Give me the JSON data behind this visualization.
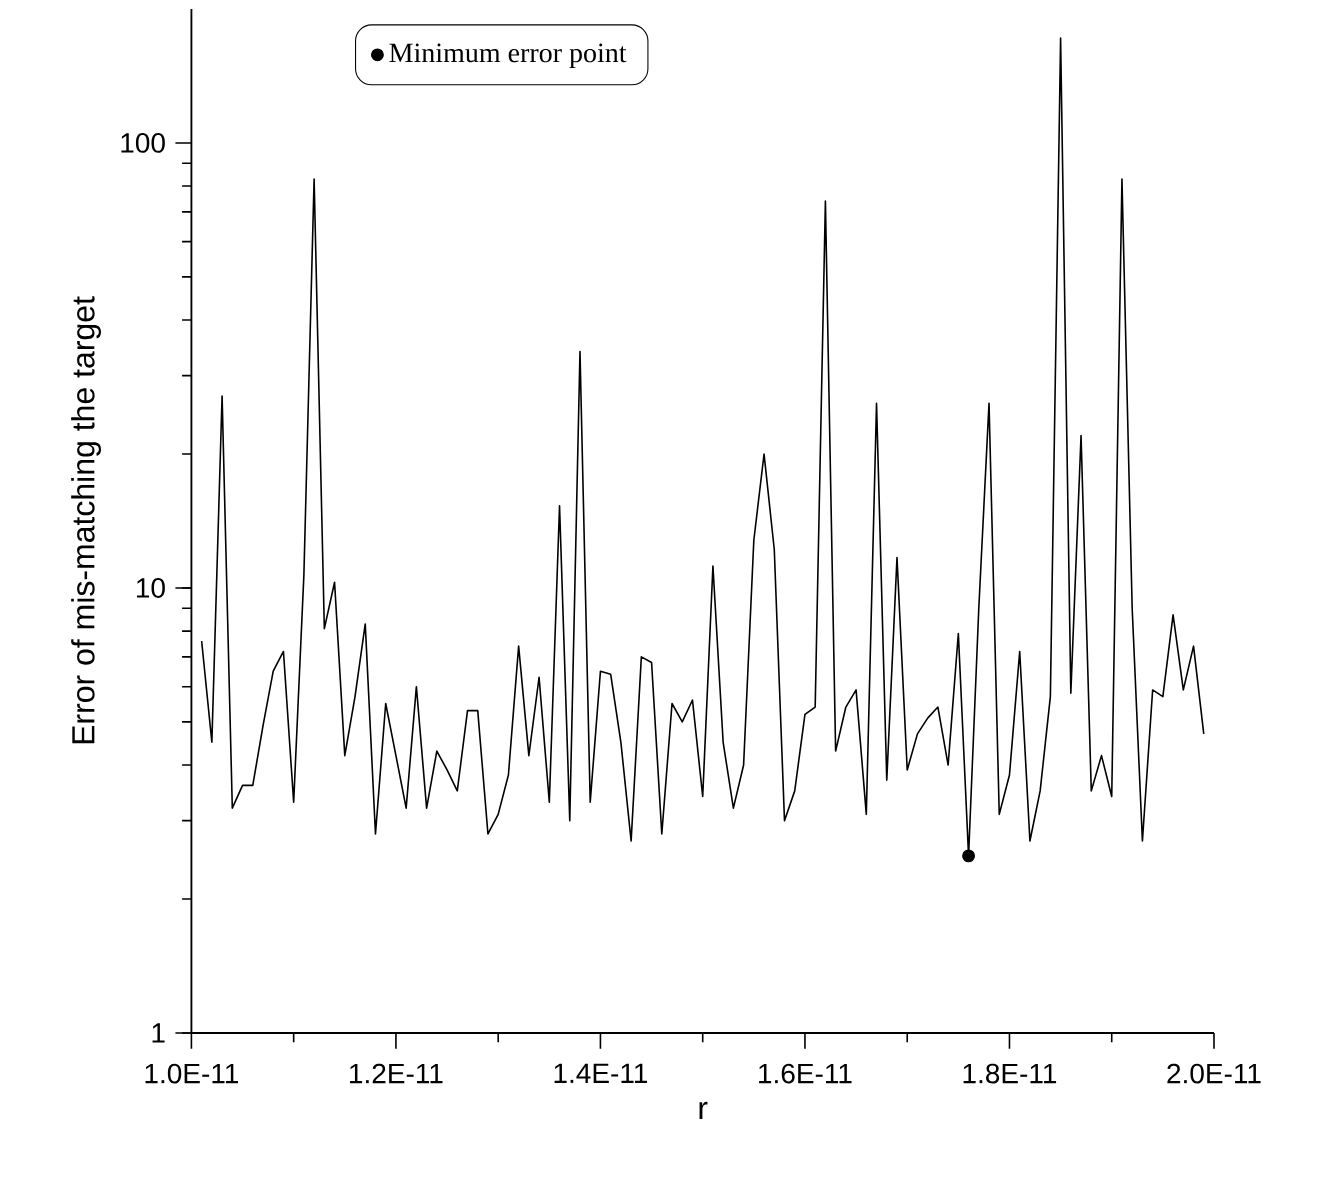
{
  "chart_data": {
    "type": "line",
    "xlabel": "r",
    "ylabel": "Error of mis-matching the target",
    "x": [
      1.01e-11,
      1.02e-11,
      1.03e-11,
      1.04e-11,
      1.05e-11,
      1.06e-11,
      1.07e-11,
      1.08e-11,
      1.09e-11,
      1.1e-11,
      1.11e-11,
      1.12e-11,
      1.13e-11,
      1.14e-11,
      1.15e-11,
      1.16e-11,
      1.17e-11,
      1.18e-11,
      1.19e-11,
      1.2e-11,
      1.21e-11,
      1.22e-11,
      1.23e-11,
      1.24e-11,
      1.25e-11,
      1.26e-11,
      1.27e-11,
      1.28e-11,
      1.29e-11,
      1.3e-11,
      1.31e-11,
      1.32e-11,
      1.33e-11,
      1.34e-11,
      1.35e-11,
      1.36e-11,
      1.37e-11,
      1.38e-11,
      1.39e-11,
      1.4e-11,
      1.41e-11,
      1.42e-11,
      1.43e-11,
      1.44e-11,
      1.45e-11,
      1.46e-11,
      1.47e-11,
      1.48e-11,
      1.49e-11,
      1.5e-11,
      1.51e-11,
      1.52e-11,
      1.53e-11,
      1.54e-11,
      1.55e-11,
      1.56e-11,
      1.57e-11,
      1.58e-11,
      1.59e-11,
      1.6e-11,
      1.61e-11,
      1.62e-11,
      1.63e-11,
      1.64e-11,
      1.65e-11,
      1.66e-11,
      1.67e-11,
      1.68e-11,
      1.69e-11,
      1.7e-11,
      1.71e-11,
      1.72e-11,
      1.73e-11,
      1.74e-11,
      1.75e-11,
      1.76e-11,
      1.77e-11,
      1.78e-11,
      1.79e-11,
      1.8e-11,
      1.81e-11,
      1.82e-11,
      1.83e-11,
      1.84e-11,
      1.85e-11,
      1.86e-11,
      1.87e-11,
      1.88e-11,
      1.89e-11,
      1.9e-11,
      1.91e-11,
      1.92e-11,
      1.93e-11,
      1.94e-11,
      1.95e-11,
      1.96e-11,
      1.97e-11,
      1.98e-11,
      1.99e-11
    ],
    "series": [
      {
        "color": "#000000",
        "marker": "none",
        "values": [
          7.6,
          4.5,
          27,
          3.2,
          3.6,
          3.6,
          4.9,
          6.5,
          7.2,
          3.3,
          10.7,
          83,
          8.1,
          10.3,
          4.2,
          5.7,
          8.3,
          2.8,
          5.5,
          4.2,
          3.2,
          6.0,
          3.2,
          4.3,
          3.9,
          3.5,
          5.3,
          5.3,
          2.8,
          3.1,
          3.8,
          7.4,
          4.2,
          6.3,
          3.3,
          15.3,
          3.0,
          34,
          3.3,
          6.5,
          6.4,
          4.5,
          2.7,
          7.0,
          6.8,
          2.8,
          5.5,
          5.0,
          5.6,
          3.4,
          11.2,
          4.5,
          3.2,
          4.0,
          12.8,
          20,
          12.2,
          3.0,
          3.5,
          5.2,
          5.4,
          74,
          4.3,
          5.4,
          5.9,
          3.1,
          26,
          3.7,
          11.7,
          3.9,
          4.7,
          5.1,
          5.4,
          4.0,
          7.9,
          2.5,
          9.0,
          26,
          3.1,
          3.8,
          7.2,
          2.7,
          3.5,
          5.7,
          172,
          5.8,
          22,
          3.5,
          4.2,
          3.4,
          83,
          9.0,
          2.7,
          5.9,
          5.7,
          8.7,
          5.9,
          7.4,
          4.7
        ]
      },
      {
        "type": "scatter",
        "name": "Minimum error point",
        "color": "#000000",
        "marker": "circle",
        "x": [
          1.76e-11
        ],
        "values": [
          2.5
        ]
      }
    ],
    "xlim": [
      1e-11,
      2e-11
    ],
    "ylim": [
      1,
      200
    ],
    "log": "y",
    "xticks": [
      {
        "value": 1e-11,
        "label": "1.0E-11"
      },
      {
        "value": 1.2e-11,
        "label": "1.2E-11"
      },
      {
        "value": 1.4e-11,
        "label": "1.4E-11"
      },
      {
        "value": 1.6e-11,
        "label": "1.6E-11"
      },
      {
        "value": 1.8e-11,
        "label": "1.8E-11"
      },
      {
        "value": 2e-11,
        "label": "2.0E-11"
      }
    ],
    "yticks": [
      1,
      10,
      100
    ],
    "legend": "top left"
  }
}
